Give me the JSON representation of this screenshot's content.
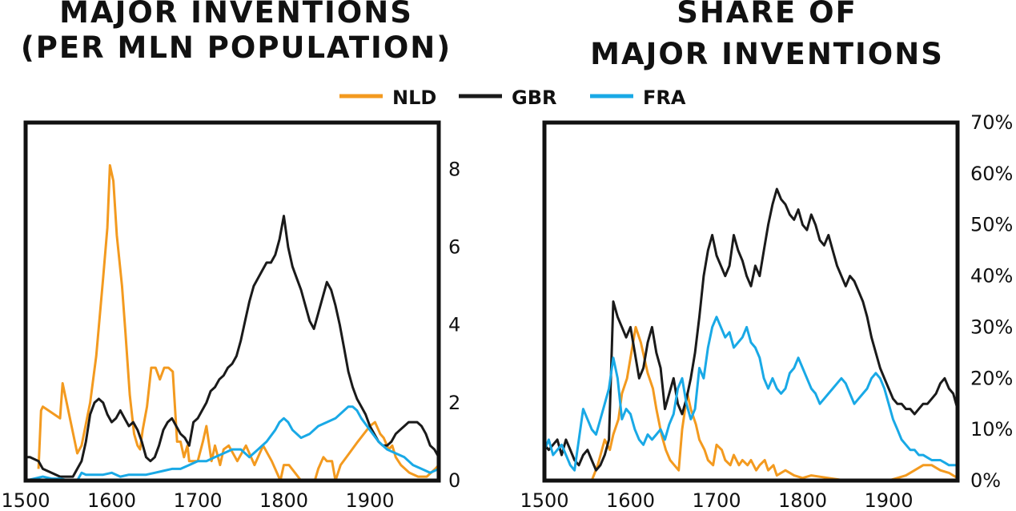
{
  "legend": [
    {
      "label": "NLD",
      "color": "#F39A1F"
    },
    {
      "label": "GBR",
      "color": "#1A1A1A"
    },
    {
      "label": "FRA",
      "color": "#19A9E6"
    }
  ],
  "chart_data": [
    {
      "type": "line",
      "title": [
        "MAJOR INVENTIONS",
        "(PER MLN POPULATION)"
      ],
      "xlim": [
        1500,
        1980
      ],
      "ylim": [
        0,
        9.2
      ],
      "x_ticks": [
        1500,
        1600,
        1700,
        1800,
        1900
      ],
      "x_tick_labels": [
        "1500",
        "1600",
        "1700",
        "1800",
        "1900"
      ],
      "y_ticks": [
        0,
        2,
        4,
        6,
        8
      ],
      "y_tick_labels": [
        "0",
        "2",
        "4",
        "6",
        "8"
      ],
      "grid": false,
      "series": [
        {
          "name": "NLD",
          "color": "#F39A1F",
          "x": [
            1515,
            1518,
            1520,
            1540,
            1543,
            1560,
            1565,
            1575,
            1582,
            1590,
            1595,
            1598,
            1602,
            1606,
            1612,
            1616,
            1621,
            1626,
            1630,
            1633,
            1636,
            1641,
            1646,
            1651,
            1656,
            1661,
            1666,
            1671,
            1676,
            1680,
            1684,
            1688,
            1690,
            1700,
            1706,
            1710,
            1716,
            1720,
            1726,
            1730,
            1736,
            1746,
            1756,
            1766,
            1776,
            1786,
            1796,
            1800,
            1806,
            1820,
            1836,
            1840,
            1846,
            1850,
            1856,
            1860,
            1866,
            1876,
            1886,
            1900,
            1906,
            1912,
            1916,
            1922,
            1926,
            1930,
            1936,
            1946,
            1956,
            1966,
            1976,
            1980
          ],
          "y": [
            0.3,
            1.8,
            1.9,
            1.6,
            2.5,
            0.7,
            0.9,
            2.0,
            3.2,
            5.2,
            6.5,
            8.1,
            7.7,
            6.3,
            5.0,
            3.8,
            2.2,
            1.2,
            0.9,
            0.8,
            1.3,
            1.9,
            2.9,
            2.9,
            2.6,
            2.9,
            2.9,
            2.8,
            1.0,
            1.0,
            0.6,
            0.9,
            0.5,
            0.5,
            1.0,
            1.4,
            0.5,
            0.9,
            0.4,
            0.8,
            0.9,
            0.5,
            0.9,
            0.4,
            0.9,
            0.5,
            0.0,
            0.4,
            0.4,
            0.0,
            0.0,
            0.3,
            0.6,
            0.5,
            0.5,
            0.0,
            0.4,
            0.7,
            1.0,
            1.4,
            1.5,
            1.2,
            1.1,
            0.8,
            0.9,
            0.6,
            0.4,
            0.2,
            0.1,
            0.1,
            0.3,
            0.4
          ]
        },
        {
          "name": "GBR",
          "color": "#1A1A1A",
          "x": [
            1500,
            1505,
            1515,
            1520,
            1530,
            1540,
            1555,
            1560,
            1565,
            1570,
            1575,
            1580,
            1585,
            1590,
            1595,
            1600,
            1605,
            1610,
            1615,
            1620,
            1625,
            1630,
            1635,
            1640,
            1645,
            1650,
            1655,
            1660,
            1665,
            1670,
            1675,
            1680,
            1685,
            1690,
            1695,
            1700,
            1705,
            1710,
            1715,
            1720,
            1725,
            1730,
            1735,
            1740,
            1745,
            1750,
            1755,
            1760,
            1765,
            1770,
            1775,
            1780,
            1785,
            1790,
            1795,
            1800,
            1805,
            1810,
            1815,
            1820,
            1825,
            1830,
            1835,
            1840,
            1845,
            1850,
            1855,
            1860,
            1865,
            1870,
            1875,
            1880,
            1885,
            1890,
            1895,
            1900,
            1905,
            1910,
            1915,
            1920,
            1925,
            1930,
            1935,
            1940,
            1945,
            1950,
            1955,
            1960,
            1965,
            1970,
            1975,
            1980
          ],
          "y": [
            0.6,
            0.6,
            0.5,
            0.3,
            0.2,
            0.1,
            0.1,
            0.3,
            0.5,
            1.0,
            1.7,
            2.0,
            2.1,
            2.0,
            1.7,
            1.5,
            1.6,
            1.8,
            1.6,
            1.4,
            1.5,
            1.3,
            1.0,
            0.6,
            0.5,
            0.6,
            0.9,
            1.3,
            1.5,
            1.6,
            1.4,
            1.2,
            1.1,
            0.9,
            1.5,
            1.6,
            1.8,
            2.0,
            2.3,
            2.4,
            2.6,
            2.7,
            2.9,
            3.0,
            3.2,
            3.6,
            4.1,
            4.6,
            5.0,
            5.2,
            5.4,
            5.6,
            5.6,
            5.8,
            6.2,
            6.8,
            6.0,
            5.5,
            5.2,
            4.9,
            4.5,
            4.1,
            3.9,
            4.3,
            4.7,
            5.1,
            4.9,
            4.5,
            4.0,
            3.4,
            2.8,
            2.4,
            2.1,
            1.9,
            1.7,
            1.4,
            1.2,
            1.0,
            0.9,
            0.9,
            1.0,
            1.2,
            1.3,
            1.4,
            1.5,
            1.5,
            1.5,
            1.4,
            1.2,
            0.9,
            0.8,
            0.6
          ]
        },
        {
          "name": "FRA",
          "color": "#19A9E6",
          "x": [
            1500,
            1510,
            1520,
            1530,
            1540,
            1550,
            1560,
            1565,
            1570,
            1580,
            1590,
            1600,
            1610,
            1620,
            1630,
            1640,
            1650,
            1660,
            1670,
            1680,
            1690,
            1700,
            1710,
            1720,
            1730,
            1740,
            1750,
            1760,
            1770,
            1780,
            1790,
            1795,
            1800,
            1805,
            1810,
            1820,
            1830,
            1840,
            1850,
            1860,
            1870,
            1875,
            1880,
            1885,
            1890,
            1900,
            1910,
            1920,
            1930,
            1940,
            1950,
            1960,
            1970,
            1980
          ],
          "y": [
            0.0,
            0.05,
            0.1,
            0.05,
            0.05,
            0.0,
            0.0,
            0.2,
            0.15,
            0.15,
            0.15,
            0.2,
            0.1,
            0.15,
            0.15,
            0.15,
            0.2,
            0.25,
            0.3,
            0.3,
            0.4,
            0.5,
            0.5,
            0.6,
            0.7,
            0.8,
            0.8,
            0.6,
            0.8,
            1.0,
            1.3,
            1.5,
            1.6,
            1.5,
            1.3,
            1.1,
            1.2,
            1.4,
            1.5,
            1.6,
            1.8,
            1.9,
            1.9,
            1.8,
            1.6,
            1.3,
            1.0,
            0.8,
            0.7,
            0.6,
            0.4,
            0.3,
            0.2,
            0.3
          ]
        }
      ]
    },
    {
      "type": "line",
      "title": [
        "SHARE OF",
        "MAJOR INVENTIONS"
      ],
      "xlim": [
        1500,
        1980
      ],
      "ylim": [
        0,
        70
      ],
      "x_ticks": [
        1500,
        1600,
        1700,
        1800,
        1900
      ],
      "x_tick_labels": [
        "1500",
        "1600",
        "1700",
        "1800",
        "1900"
      ],
      "y_ticks": [
        0,
        10,
        20,
        30,
        40,
        50,
        60,
        70
      ],
      "y_tick_labels": [
        "0%",
        "10%",
        "20%",
        "30%",
        "40%",
        "50%",
        "60%",
        "70%"
      ],
      "grid": false,
      "series": [
        {
          "name": "NLD",
          "color": "#F39A1F",
          "x": [
            1555,
            1562,
            1570,
            1576,
            1580,
            1586,
            1590,
            1596,
            1600,
            1606,
            1612,
            1620,
            1626,
            1630,
            1636,
            1641,
            1646,
            1651,
            1656,
            1660,
            1666,
            1670,
            1676,
            1680,
            1686,
            1690,
            1696,
            1700,
            1706,
            1710,
            1716,
            1720,
            1726,
            1730,
            1736,
            1740,
            1746,
            1750,
            1756,
            1760,
            1766,
            1770,
            1780,
            1790,
            1800,
            1810,
            1830,
            1850,
            1870,
            1890,
            1900,
            1910,
            1920,
            1930,
            1940,
            1950,
            1960,
            1970,
            1975,
            1980
          ],
          "y": [
            0,
            3,
            8,
            6,
            9,
            12,
            17,
            20,
            24,
            30,
            27,
            21,
            18,
            14,
            9,
            6,
            4,
            3,
            2,
            10,
            17,
            14,
            11,
            8,
            6,
            4,
            3,
            7,
            6,
            4,
            3,
            5,
            3,
            4,
            3,
            4,
            2,
            3,
            4,
            2,
            3,
            1,
            2,
            1,
            0.5,
            1,
            0.5,
            0,
            0,
            0,
            0,
            0.5,
            1,
            2,
            3,
            3,
            2,
            1.5,
            1,
            0.5
          ]
        },
        {
          "name": "GBR",
          "color": "#1A1A1A",
          "x": [
            1500,
            1505,
            1515,
            1520,
            1525,
            1530,
            1535,
            1540,
            1545,
            1550,
            1555,
            1560,
            1565,
            1570,
            1575,
            1580,
            1585,
            1590,
            1595,
            1600,
            1605,
            1610,
            1615,
            1620,
            1625,
            1630,
            1635,
            1640,
            1645,
            1650,
            1655,
            1660,
            1665,
            1670,
            1675,
            1680,
            1685,
            1690,
            1695,
            1700,
            1705,
            1710,
            1715,
            1720,
            1725,
            1730,
            1735,
            1740,
            1745,
            1750,
            1755,
            1760,
            1765,
            1770,
            1775,
            1780,
            1785,
            1790,
            1795,
            1800,
            1805,
            1810,
            1815,
            1820,
            1825,
            1830,
            1835,
            1840,
            1845,
            1850,
            1855,
            1860,
            1865,
            1870,
            1875,
            1880,
            1885,
            1890,
            1895,
            1900,
            1905,
            1910,
            1915,
            1920,
            1925,
            1930,
            1935,
            1940,
            1945,
            1950,
            1955,
            1960,
            1965,
            1970,
            1975,
            1980
          ],
          "y": [
            7,
            6,
            8,
            5,
            8,
            6,
            4,
            3,
            5,
            6,
            4,
            2,
            3,
            5,
            8,
            35,
            32,
            30,
            28,
            30,
            25,
            20,
            22,
            27,
            30,
            25,
            22,
            14,
            17,
            20,
            15,
            13,
            16,
            20,
            25,
            32,
            40,
            45,
            48,
            44,
            42,
            40,
            42,
            48,
            45,
            43,
            40,
            38,
            42,
            40,
            45,
            50,
            54,
            57,
            55,
            54,
            52,
            51,
            53,
            50,
            49,
            52,
            50,
            47,
            46,
            48,
            45,
            42,
            40,
            38,
            40,
            39,
            37,
            35,
            32,
            28,
            25,
            22,
            20,
            18,
            16,
            15,
            15,
            14,
            14,
            13,
            14,
            15,
            15,
            16,
            17,
            19,
            20,
            18,
            17,
            14
          ]
        },
        {
          "name": "FRA",
          "color": "#19A9E6",
          "x": [
            1500,
            1505,
            1510,
            1515,
            1520,
            1525,
            1530,
            1535,
            1540,
            1545,
            1550,
            1555,
            1560,
            1565,
            1570,
            1575,
            1580,
            1585,
            1590,
            1595,
            1600,
            1605,
            1610,
            1615,
            1620,
            1625,
            1630,
            1635,
            1640,
            1645,
            1650,
            1655,
            1660,
            1665,
            1670,
            1675,
            1680,
            1685,
            1690,
            1695,
            1700,
            1705,
            1710,
            1715,
            1720,
            1725,
            1730,
            1735,
            1740,
            1745,
            1750,
            1755,
            1760,
            1765,
            1770,
            1775,
            1780,
            1785,
            1790,
            1795,
            1800,
            1805,
            1810,
            1815,
            1820,
            1825,
            1830,
            1835,
            1840,
            1845,
            1850,
            1855,
            1860,
            1865,
            1870,
            1875,
            1880,
            1885,
            1890,
            1895,
            1900,
            1905,
            1910,
            1915,
            1920,
            1925,
            1930,
            1935,
            1940,
            1945,
            1950,
            1955,
            1960,
            1965,
            1970,
            1975,
            1980
          ],
          "y": [
            6,
            8,
            5,
            6,
            7,
            5,
            3,
            2,
            8,
            14,
            12,
            10,
            9,
            12,
            15,
            18,
            24,
            20,
            12,
            14,
            13,
            10,
            8,
            7,
            9,
            8,
            9,
            10,
            8,
            11,
            13,
            18,
            20,
            15,
            12,
            14,
            22,
            20,
            26,
            30,
            32,
            30,
            28,
            29,
            26,
            27,
            28,
            30,
            27,
            26,
            24,
            20,
            18,
            20,
            18,
            17,
            18,
            21,
            22,
            24,
            22,
            20,
            18,
            17,
            15,
            16,
            17,
            18,
            19,
            20,
            19,
            17,
            15,
            16,
            17,
            18,
            20,
            21,
            20,
            18,
            15,
            12,
            10,
            8,
            7,
            6,
            6,
            5,
            5,
            4.5,
            4,
            4,
            4,
            3.5,
            3,
            3,
            3
          ]
        }
      ]
    }
  ]
}
